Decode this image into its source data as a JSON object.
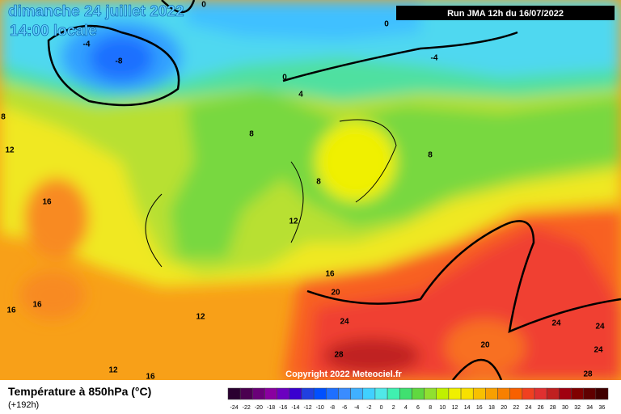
{
  "header": {
    "date": "dimanche 24 juillet 2022",
    "time": "14:00 locale",
    "run": "Run JMA 12h du 16/07/2022"
  },
  "copyright": "Copyright 2022 Meteociel.fr",
  "contour_labels": [
    0,
    0,
    -4,
    -8,
    -4,
    0,
    4,
    8,
    8,
    8,
    12,
    16,
    8,
    12,
    16,
    20,
    16,
    16,
    12,
    24,
    28,
    24,
    24,
    24,
    20,
    28,
    12,
    16
  ],
  "legend": {
    "title": "Température à 850hPa (°C)",
    "lead": "(+192h)",
    "scale": [
      -24,
      -22,
      -20,
      -18,
      -16,
      -14,
      -12,
      -10,
      -8,
      -6,
      -4,
      -2,
      0,
      2,
      4,
      6,
      8,
      10,
      12,
      14,
      16,
      18,
      20,
      22,
      24,
      26,
      28,
      30,
      32,
      34,
      36
    ],
    "colors": [
      "#2a0030",
      "#4b0050",
      "#6a0078",
      "#8a00a0",
      "#6b00c0",
      "#3a00d0",
      "#2040e0",
      "#0050ff",
      "#1e6fff",
      "#3a8cff",
      "#40b0ff",
      "#40d0ff",
      "#50e8e8",
      "#40f0b0",
      "#40e070",
      "#60d840",
      "#90e030",
      "#c0f000",
      "#f0f000",
      "#f8e000",
      "#f8c000",
      "#f8a000",
      "#f88000",
      "#f86000",
      "#f04020",
      "#e03030",
      "#c02020",
      "#a00010",
      "#800000",
      "#600000",
      "#400000"
    ]
  }
}
